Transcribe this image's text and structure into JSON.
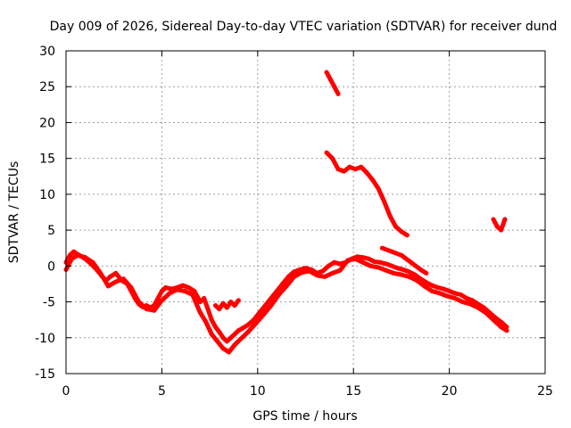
{
  "chart_data": {
    "type": "line",
    "title": "Day 009 of 2026, Sidereal Day-to-day VTEC variation (SDTVAR) for receiver dund",
    "xlabel": "GPS time / hours",
    "ylabel": "SDTVAR / TECUs",
    "xlim": [
      0,
      25
    ],
    "ylim": [
      -15,
      30
    ],
    "xticks": [
      0,
      5,
      10,
      15,
      20,
      25
    ],
    "yticks": [
      -15,
      -10,
      -5,
      0,
      5,
      10,
      15,
      20,
      25,
      30
    ],
    "grid": true,
    "series_color": "#ff0000",
    "series": [
      {
        "name": "main",
        "x": [
          0,
          0.2,
          0.4,
          0.7,
          1.0,
          1.3,
          1.6,
          1.9,
          2.1,
          2.3,
          2.6,
          2.9,
          3.2,
          3.4,
          3.6,
          3.8,
          4.0,
          4.2,
          4.4,
          4.6,
          4.8,
          5.0,
          5.2,
          5.5,
          5.8,
          6.1,
          6.4,
          6.7,
          7.0,
          7.2,
          7.4,
          7.6,
          7.8,
          8.0,
          8.2,
          8.4,
          8.6,
          8.8,
          9.0,
          9.2,
          9.5,
          9.8,
          10.1,
          10.4,
          10.7,
          11.0,
          11.3,
          11.6,
          11.9,
          12.2,
          12.5,
          12.8,
          13.1,
          13.4,
          13.7,
          14.0,
          14.3,
          14.6,
          14.9,
          15.2,
          15.5,
          15.8,
          16.1,
          16.4,
          16.7,
          17.0,
          17.3,
          17.6,
          17.9,
          18.2,
          18.5,
          18.8,
          19.1,
          19.4,
          19.7,
          20.0,
          20.3,
          20.6,
          20.9,
          21.2,
          21.5,
          21.8,
          22.1,
          22.4,
          22.7,
          23.0
        ],
        "values": [
          0.5,
          1.5,
          2.0,
          1.5,
          1.0,
          0.3,
          -0.5,
          -1.5,
          -2.0,
          -1.5,
          -1.0,
          -2.0,
          -2.5,
          -3.5,
          -4.5,
          -5.3,
          -5.7,
          -5.5,
          -5.8,
          -5.5,
          -4.5,
          -3.5,
          -3.0,
          -3.2,
          -3.0,
          -2.7,
          -3.0,
          -3.5,
          -5.0,
          -4.5,
          -6.0,
          -7.5,
          -8.5,
          -9.2,
          -10.0,
          -10.5,
          -10.0,
          -9.5,
          -9.0,
          -8.7,
          -8.2,
          -7.5,
          -6.5,
          -5.5,
          -4.5,
          -3.5,
          -2.5,
          -1.5,
          -0.8,
          -0.5,
          -0.3,
          -0.5,
          -1.0,
          -0.7,
          0.0,
          0.5,
          0.3,
          0.5,
          1.0,
          1.3,
          1.2,
          1.0,
          0.6,
          0.5,
          0.3,
          0.0,
          -0.3,
          -0.5,
          -0.8,
          -1.2,
          -1.8,
          -2.3,
          -2.7,
          -3.0,
          -3.2,
          -3.5,
          -3.8,
          -4.0,
          -4.5,
          -4.8,
          -5.3,
          -5.8,
          -6.5,
          -7.2,
          -7.8,
          -8.5
        ]
      },
      {
        "name": "alternate",
        "x": [
          0,
          0.3,
          0.6,
          1.0,
          1.4,
          1.8,
          2.2,
          2.6,
          3.0,
          3.4,
          3.8,
          4.2,
          4.6,
          5.0,
          5.4,
          5.8,
          6.2,
          6.6,
          7.0,
          7.3,
          7.6,
          7.9,
          8.2,
          8.5,
          8.8,
          9.1,
          9.5,
          9.9,
          10.3,
          10.7,
          11.1,
          11.5,
          11.9,
          12.3,
          12.7,
          13.1,
          13.5,
          13.9,
          14.3,
          14.7,
          15.1,
          15.5,
          15.9,
          16.3,
          16.7,
          17.1,
          17.5,
          17.9,
          18.3,
          18.7,
          19.1,
          19.5,
          19.9,
          20.3,
          20.7,
          21.1,
          21.5,
          21.9,
          22.3,
          22.7,
          23.0
        ],
        "values": [
          -0.5,
          1.0,
          1.5,
          1.2,
          0.5,
          -1.0,
          -2.8,
          -2.2,
          -1.8,
          -3.0,
          -5.0,
          -6.0,
          -6.2,
          -4.8,
          -3.8,
          -3.3,
          -3.5,
          -4.0,
          -6.5,
          -7.8,
          -9.5,
          -10.5,
          -11.5,
          -12.0,
          -11.0,
          -10.2,
          -9.2,
          -8.0,
          -6.8,
          -5.5,
          -4.0,
          -2.8,
          -1.5,
          -0.9,
          -0.7,
          -1.3,
          -1.5,
          -1.0,
          -0.6,
          0.8,
          1.0,
          0.5,
          0.0,
          -0.2,
          -0.6,
          -1.0,
          -1.2,
          -1.5,
          -2.0,
          -2.8,
          -3.5,
          -3.8,
          -4.2,
          -4.5,
          -5.0,
          -5.3,
          -5.8,
          -6.5,
          -7.5,
          -8.5,
          -9.0
        ]
      },
      {
        "name": "dip-segment",
        "x": [
          7.8,
          8.0,
          8.2,
          8.4,
          8.6,
          8.8,
          9.0
        ],
        "values": [
          -5.5,
          -6.0,
          -5.2,
          -5.8,
          -5.0,
          -5.5,
          -4.8
        ]
      },
      {
        "name": "afternoon-rise",
        "x": [
          16.5,
          17.0,
          17.5,
          18.0,
          18.5,
          18.8
        ],
        "values": [
          2.5,
          2.0,
          1.5,
          0.5,
          -0.5,
          -1.0
        ]
      },
      {
        "name": "high-branch-a",
        "x": [
          13.6,
          13.8,
          14.0,
          14.2
        ],
        "values": [
          27.0,
          26.0,
          25.0,
          24.0
        ]
      },
      {
        "name": "high-branch-b",
        "x": [
          13.6,
          13.9,
          14.2,
          14.5,
          14.8,
          15.1,
          15.4,
          15.7,
          16.0,
          16.3,
          16.6,
          16.9,
          17.2,
          17.5,
          17.8
        ],
        "values": [
          15.8,
          15.0,
          13.5,
          13.2,
          13.8,
          13.5,
          13.8,
          13.0,
          12.0,
          10.8,
          9.0,
          7.0,
          5.5,
          4.8,
          4.3
        ]
      },
      {
        "name": "late-segment",
        "x": [
          22.3,
          22.5,
          22.7,
          22.9
        ],
        "values": [
          6.5,
          5.5,
          5.0,
          6.5
        ]
      }
    ]
  }
}
